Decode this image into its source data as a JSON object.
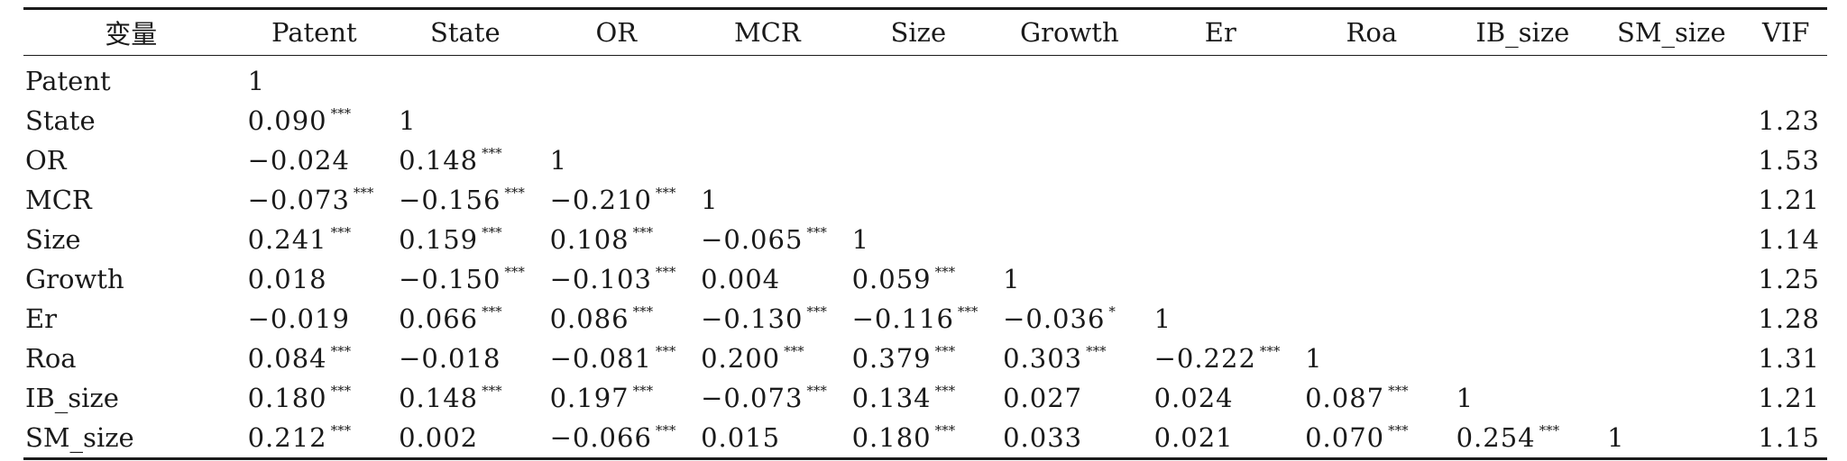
{
  "table": {
    "headers": [
      "变量",
      "Patent",
      "State",
      "OR",
      "MCR",
      "Size",
      "Growth",
      "Er",
      "Roa",
      "IB_size",
      "SM_size",
      "VIF"
    ],
    "rows": [
      {
        "label": "Patent",
        "cells": [
          {
            "v": "1",
            "s": ""
          }
        ],
        "vif": ""
      },
      {
        "label": "State",
        "cells": [
          {
            "v": "0.090",
            "s": "***"
          },
          {
            "v": "1",
            "s": ""
          }
        ],
        "vif": "1.23"
      },
      {
        "label": "OR",
        "cells": [
          {
            "v": "−0.024",
            "s": ""
          },
          {
            "v": "0.148",
            "s": "***"
          },
          {
            "v": "1",
            "s": ""
          }
        ],
        "vif": "1.53"
      },
      {
        "label": "MCR",
        "cells": [
          {
            "v": "−0.073",
            "s": "***"
          },
          {
            "v": "−0.156",
            "s": "***"
          },
          {
            "v": "−0.210",
            "s": "***"
          },
          {
            "v": "1",
            "s": ""
          }
        ],
        "vif": "1.21"
      },
      {
        "label": "Size",
        "cells": [
          {
            "v": "0.241",
            "s": "***"
          },
          {
            "v": "0.159",
            "s": "***"
          },
          {
            "v": "0.108",
            "s": "***"
          },
          {
            "v": "−0.065",
            "s": "***"
          },
          {
            "v": "1",
            "s": ""
          }
        ],
        "vif": "1.14"
      },
      {
        "label": "Growth",
        "cells": [
          {
            "v": "0.018",
            "s": ""
          },
          {
            "v": "−0.150",
            "s": "***"
          },
          {
            "v": "−0.103",
            "s": "***"
          },
          {
            "v": "0.004",
            "s": ""
          },
          {
            "v": "0.059",
            "s": "***"
          },
          {
            "v": "1",
            "s": ""
          }
        ],
        "vif": "1.25"
      },
      {
        "label": "Er",
        "cells": [
          {
            "v": "−0.019",
            "s": ""
          },
          {
            "v": "0.066",
            "s": "***"
          },
          {
            "v": "0.086",
            "s": "***"
          },
          {
            "v": "−0.130",
            "s": "***"
          },
          {
            "v": "−0.116",
            "s": "***"
          },
          {
            "v": "−0.036",
            "s": "*"
          },
          {
            "v": "1",
            "s": ""
          }
        ],
        "vif": "1.28"
      },
      {
        "label": "Roa",
        "cells": [
          {
            "v": "0.084",
            "s": "***"
          },
          {
            "v": "−0.018",
            "s": ""
          },
          {
            "v": "−0.081",
            "s": "***"
          },
          {
            "v": "0.200",
            "s": "***"
          },
          {
            "v": "0.379",
            "s": "***"
          },
          {
            "v": "0.303",
            "s": "***"
          },
          {
            "v": "−0.222",
            "s": "***"
          },
          {
            "v": "1",
            "s": ""
          }
        ],
        "vif": "1.31"
      },
      {
        "label": "IB_size",
        "cells": [
          {
            "v": "0.180",
            "s": "***"
          },
          {
            "v": "0.148",
            "s": "***"
          },
          {
            "v": "0.197",
            "s": "***"
          },
          {
            "v": "−0.073",
            "s": "***"
          },
          {
            "v": "0.134",
            "s": "***"
          },
          {
            "v": "0.027",
            "s": ""
          },
          {
            "v": "0.024",
            "s": ""
          },
          {
            "v": "0.087",
            "s": "***"
          },
          {
            "v": "1",
            "s": ""
          }
        ],
        "vif": "1.21"
      },
      {
        "label": "SM_size",
        "cells": [
          {
            "v": "0.212",
            "s": "***"
          },
          {
            "v": "0.002",
            "s": ""
          },
          {
            "v": "−0.066",
            "s": "***"
          },
          {
            "v": "0.015",
            "s": ""
          },
          {
            "v": "0.180",
            "s": "***"
          },
          {
            "v": "0.033",
            "s": ""
          },
          {
            "v": "0.021",
            "s": ""
          },
          {
            "v": "0.070",
            "s": "***"
          },
          {
            "v": "0.254",
            "s": "***"
          },
          {
            "v": "1",
            "s": ""
          }
        ],
        "vif": "1.15"
      }
    ]
  }
}
